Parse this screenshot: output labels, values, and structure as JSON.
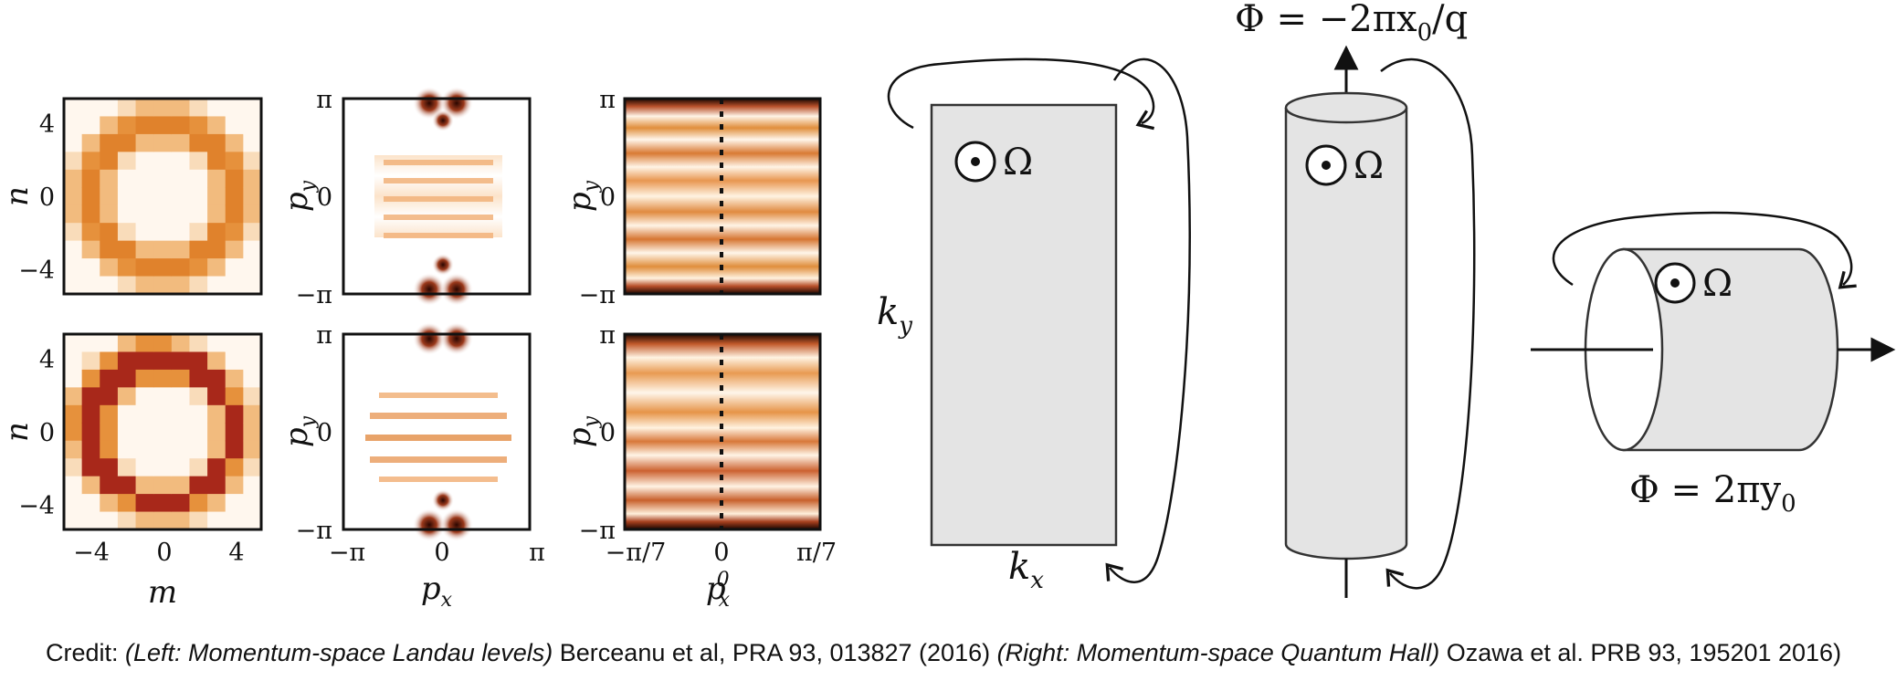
{
  "left_panels": {
    "col1": {
      "xlabel": "m",
      "ylabel": "n",
      "xticks": [
        "−4",
        "0",
        "4"
      ],
      "yticks": [
        "4",
        "0",
        "−4"
      ]
    },
    "col2": {
      "xlabel": "p",
      "xlabel_sub": "x",
      "ylabel": "p",
      "ylabel_sub": "y",
      "xticks": [
        "−π",
        "0",
        "π"
      ],
      "yticks": [
        "π",
        "0",
        "−π"
      ]
    },
    "col3": {
      "xlabel": "p",
      "xlabel_sub": "x",
      "xlabel_sup": "0",
      "ylabel": "p",
      "ylabel_sub": "y",
      "xticks": [
        "−π/7",
        "0",
        "π/7"
      ],
      "yticks": [
        "π",
        "0",
        "−π"
      ]
    }
  },
  "right_diagram": {
    "flat_label_ky": "k",
    "flat_label_ky_sub": "y",
    "flat_label_kx": "k",
    "flat_label_kx_sub": "x",
    "omega": "Ω",
    "flux_vertical": "Φ = −2πx",
    "flux_vertical_sub": "0",
    "flux_vertical_tail": "/q",
    "flux_horizontal": "Φ = 2πy",
    "flux_horizontal_sub": "0"
  },
  "credit": {
    "prefix": "Credit: ",
    "left_italic": "(Left: Momentum-space Landau levels)",
    "left_ref": " Berceanu et al, PRA 93, 013827 (2016) ",
    "right_italic": "(Right: Momentum-space Quantum Hall)",
    "right_ref": " Ozawa et al. PRB 93, 195201 2016)"
  }
}
